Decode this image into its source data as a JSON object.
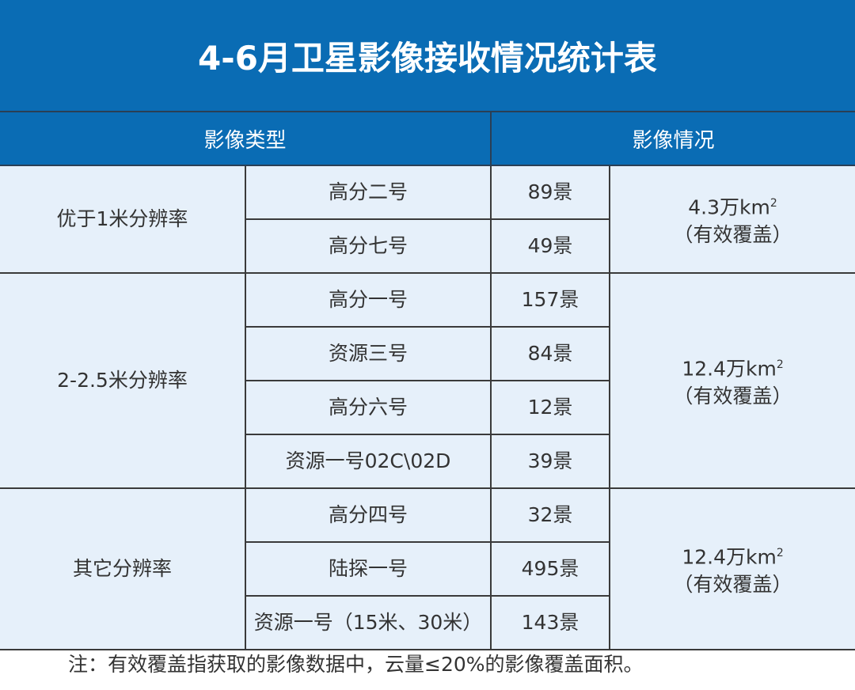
{
  "title": "4-6月卫星影像接收情况统计表",
  "headers": {
    "type": "影像类型",
    "status": "影像情况"
  },
  "groups": [
    {
      "category": "优于1米分辨率",
      "coverage": "4.3万km",
      "coverage_sup": "2",
      "coverage_note": "（有效覆盖）",
      "rows": [
        {
          "satellite": "高分二号",
          "count": "89景"
        },
        {
          "satellite": "高分七号",
          "count": "49景"
        }
      ]
    },
    {
      "category": "2-2.5米分辨率",
      "coverage": "12.4万km",
      "coverage_sup": "2",
      "coverage_note": "（有效覆盖）",
      "rows": [
        {
          "satellite": "高分一号",
          "count": "157景"
        },
        {
          "satellite": "资源三号",
          "count": "84景"
        },
        {
          "satellite": "高分六号",
          "count": "12景"
        },
        {
          "satellite": "资源一号02C\\02D",
          "count": "39景"
        }
      ]
    },
    {
      "category": "其它分辨率",
      "coverage": "12.4万km",
      "coverage_sup": "2",
      "coverage_note": "（有效覆盖）",
      "rows": [
        {
          "satellite": "高分四号",
          "count": "32景"
        },
        {
          "satellite": "陆探一号",
          "count": "495景"
        },
        {
          "satellite": "资源一号（15米、30米）",
          "count": "143景"
        }
      ]
    }
  ],
  "note": "注：有效覆盖指获取的影像数据中，云量≤20%的影像覆盖面积。",
  "colors": {
    "header_blue": "#0a6cb4",
    "body_bg": "#e6f0fa"
  }
}
